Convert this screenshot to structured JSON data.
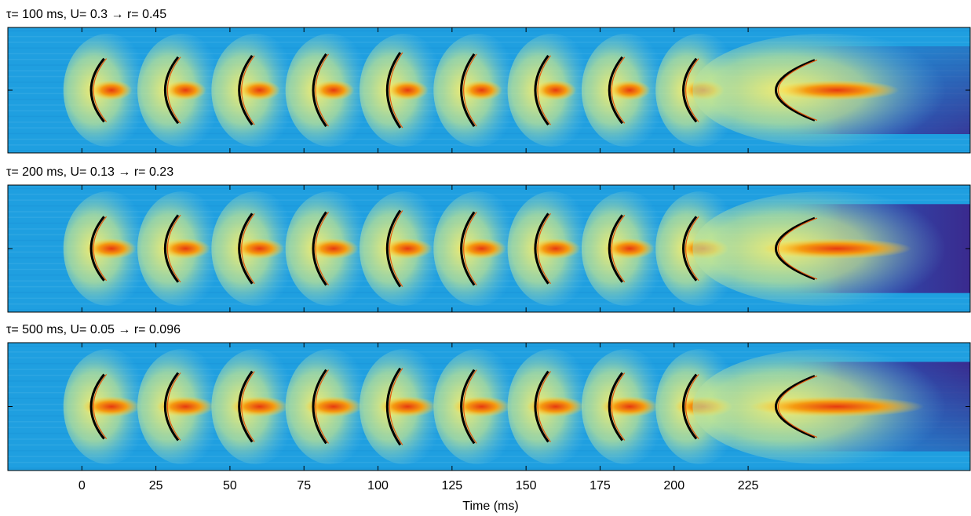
{
  "chart_data": {
    "type": "heatmap",
    "panels": [
      {
        "title": "τ= 100 ms, U= 0.3 → r= 0.45"
      },
      {
        "title": "τ= 200 ms, U= 0.13 → r= 0.23"
      },
      {
        "title": "τ= 500 ms, U= 0.05 → r= 0.096"
      }
    ],
    "xlabel": "Time (ms)",
    "xlim": [
      -25,
      300
    ],
    "xticks": [
      0,
      25,
      50,
      75,
      100,
      125,
      150,
      175,
      200,
      225
    ]
  }
}
